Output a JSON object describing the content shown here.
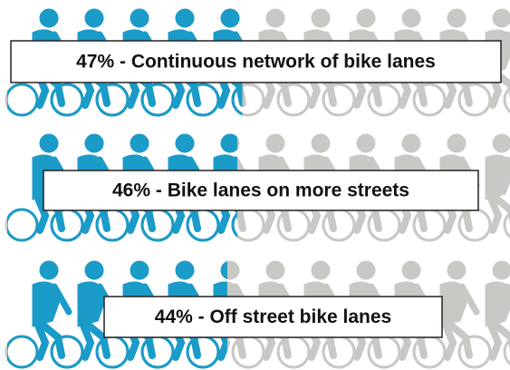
{
  "chart_data": {
    "type": "pictograph",
    "labels": [
      "47% - Continuous network of bike lanes",
      "46% - Bike lanes on more streets",
      "44% - Off street bike lanes"
    ],
    "values": [
      47,
      46,
      44
    ],
    "color": "#1a9bc8",
    "rest_color": "#c8c8c4"
  }
}
